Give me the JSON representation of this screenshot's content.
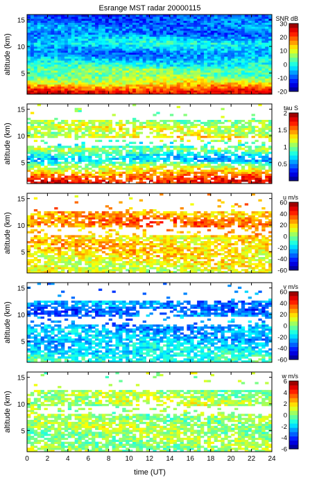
{
  "figure": {
    "title": "Esrange MST radar 20000115",
    "x_axis_label": "time (UT)",
    "x_ticks": [
      0,
      2,
      4,
      6,
      8,
      10,
      12,
      14,
      16,
      18,
      20,
      22,
      24
    ],
    "y_axis_label": "altitude (km)",
    "y_ticks": [
      5,
      10,
      15
    ]
  },
  "chart_data": [
    {
      "type": "heatmap",
      "panel": "snr",
      "colorbar_label": "SNR dB",
      "clim": [
        -20,
        30
      ],
      "colorbar_ticks": [
        30,
        20,
        10,
        0,
        -10,
        -20
      ],
      "xlim": [
        0,
        24
      ],
      "ylim": [
        1,
        16
      ],
      "xlabel": "",
      "ylabel": "altitude (km)",
      "fill": "full",
      "layers": [
        {
          "alt": [
            1.5,
            2.5,
            3.5,
            4.5,
            5.5,
            6.5,
            7.5,
            8.5,
            9.5,
            10.5,
            11.5,
            12.5,
            13.5,
            14.5,
            15.5
          ],
          "values": [
            24,
            16,
            9,
            4,
            5,
            0,
            -3,
            -8,
            -5,
            -1,
            -4,
            -9,
            -7,
            -9,
            -10
          ]
        }
      ]
    },
    {
      "type": "heatmap",
      "panel": "tau",
      "colorbar_label": "tau S",
      "clim": [
        0,
        2
      ],
      "colorbar_ticks": [
        2,
        1.5,
        1,
        0.5
      ],
      "xlim": [
        0,
        24
      ],
      "ylim": [
        1,
        16
      ],
      "xlabel": "",
      "ylabel": "altitude (km)",
      "fill": "sparse",
      "layers": [
        {
          "alt": [
            1.5,
            2.5,
            3.5,
            4.5,
            5.5,
            6.5,
            7.5,
            8.5,
            9.5,
            10.5,
            11.5,
            12.5
          ],
          "values": [
            1.75,
            1.55,
            1.3,
            1.05,
            0.6,
            0.75,
            1.1,
            0.7,
            1.3,
            1.1,
            1.2,
            1.05
          ]
        }
      ]
    },
    {
      "type": "heatmap",
      "panel": "u",
      "colorbar_label": "u m/s",
      "clim": [
        -60,
        60
      ],
      "colorbar_ticks": [
        60,
        40,
        20,
        0,
        -20,
        -40,
        -60
      ],
      "xlim": [
        0,
        24
      ],
      "ylim": [
        1,
        16
      ],
      "xlabel": "",
      "ylabel": "altitude (km)",
      "fill": "sparse",
      "layers": [
        {
          "alt": [
            1.5,
            2.5,
            3.5,
            4.5,
            5.5,
            6.5,
            7.5,
            10.0,
            10.5,
            11.0,
            11.5,
            12.0
          ],
          "values": [
            10,
            12,
            14,
            18,
            20,
            22,
            16,
            30,
            34,
            32,
            26,
            24
          ]
        }
      ]
    },
    {
      "type": "heatmap",
      "panel": "v",
      "colorbar_label": "v m/s",
      "clim": [
        -60,
        60
      ],
      "colorbar_ticks": [
        60,
        40,
        20,
        0,
        -20,
        -40,
        -60
      ],
      "xlim": [
        0,
        24
      ],
      "ylim": [
        1,
        16
      ],
      "xlabel": "",
      "ylabel": "altitude (km)",
      "fill": "sparse",
      "layers": [
        {
          "alt": [
            1.5,
            2.5,
            3.5,
            4.5,
            5.5,
            6.5,
            7.5,
            10.0,
            10.5,
            11.0,
            11.5,
            12.0
          ],
          "values": [
            -10,
            -14,
            -18,
            -20,
            -24,
            -22,
            -26,
            -30,
            -34,
            -36,
            -30,
            -28
          ]
        }
      ]
    },
    {
      "type": "heatmap",
      "panel": "w",
      "colorbar_label": "w m/s",
      "clim": [
        -6,
        6
      ],
      "colorbar_ticks": [
        6,
        4,
        2,
        0,
        -2,
        -4,
        -6
      ],
      "xlim": [
        0,
        24
      ],
      "ylim": [
        1,
        16
      ],
      "xlabel": "time (UT)",
      "ylabel": "altitude (km)",
      "fill": "sparse",
      "layers": [
        {
          "alt": [
            1.5,
            2.5,
            3.5,
            4.5,
            5.5,
            6.5,
            7.5,
            10.0,
            10.5,
            11.0,
            11.5,
            12.0
          ],
          "values": [
            0.3,
            0.2,
            0.4,
            0.1,
            0.5,
            0.3,
            0.2,
            0.6,
            0.8,
            0.5,
            0.4,
            0.3
          ]
        }
      ]
    }
  ]
}
